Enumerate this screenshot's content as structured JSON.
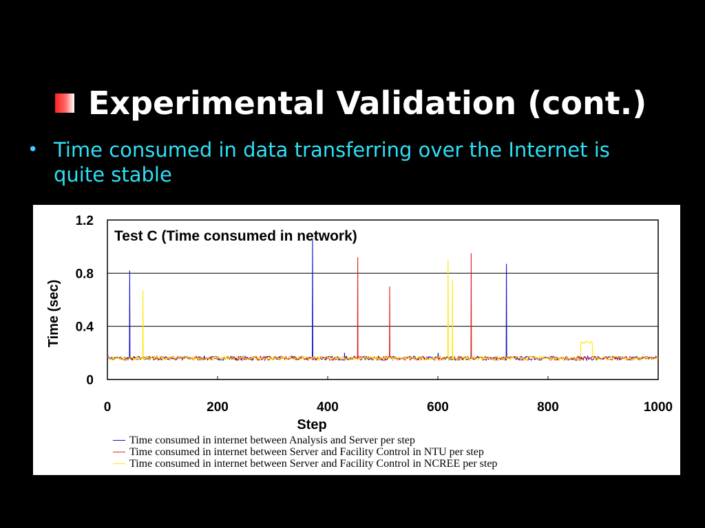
{
  "slide": {
    "title": "Experimental Validation (cont.)",
    "bullet_text": "Time consumed in data transferring over the Internet is quite stable",
    "accent_color": "#ff2020",
    "bullet_color": "#2de0f5"
  },
  "chart_data": {
    "type": "line",
    "title": "Test C (Time consumed in network)",
    "xlabel": "Step",
    "ylabel": "Time (sec)",
    "xlim": [
      0,
      1000
    ],
    "ylim": [
      0,
      1.2
    ],
    "x_ticks": [
      0,
      200,
      400,
      600,
      800,
      1000
    ],
    "y_ticks": [
      "0",
      "0.4",
      "0.8",
      "1.2"
    ],
    "grid": "horizontal",
    "legend_position": "bottom",
    "baseline": 0.16,
    "series": [
      {
        "name": "Time consumed in internet between Analysis and Server per step",
        "color": "#1010c8",
        "spikes": [
          [
            40,
            0.82
          ],
          [
            372,
            1.05
          ],
          [
            430,
            0.2
          ],
          [
            600,
            0.2
          ],
          [
            724,
            0.87
          ]
        ]
      },
      {
        "name": "Time consumed in internet between Server and Facility Control in NTU per step",
        "color": "#e02020",
        "spikes": [
          [
            455,
            0.92
          ],
          [
            513,
            0.7
          ],
          [
            660,
            0.95
          ]
        ]
      },
      {
        "name": "Time consumed in internet between Server and Facility Control in NCREE per step",
        "color": "#ffe600",
        "spikes": [
          [
            65,
            0.67
          ],
          [
            618,
            0.9
          ],
          [
            627,
            0.75
          ]
        ],
        "plateau": [
          860,
          880,
          0.28
        ]
      }
    ]
  }
}
